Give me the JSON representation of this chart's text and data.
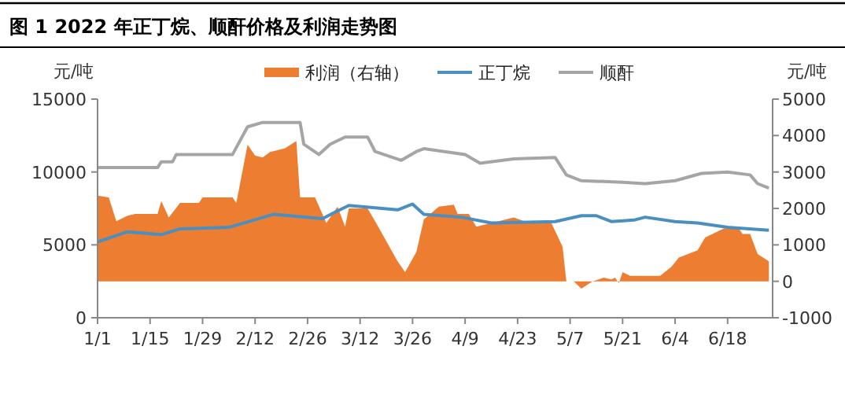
{
  "chart_data": {
    "type": "line",
    "title": "图 1 2022 年正丁烷、顺酐价格及利润走势图",
    "ylabel": "元/吨",
    "y2label": "元/吨",
    "xlim": [
      "2022-01-01",
      "2022-06-30"
    ],
    "xticks": [
      {
        "value": "2022-01-01",
        "label": "1/1"
      },
      {
        "value": "2022-01-15",
        "label": "1/15"
      },
      {
        "value": "2022-01-29",
        "label": "1/29"
      },
      {
        "value": "2022-02-12",
        "label": "2/12"
      },
      {
        "value": "2022-02-26",
        "label": "2/26"
      },
      {
        "value": "2022-03-12",
        "label": "3/12"
      },
      {
        "value": "2022-03-26",
        "label": "3/26"
      },
      {
        "value": "2022-04-09",
        "label": "4/9"
      },
      {
        "value": "2022-04-23",
        "label": "4/23"
      },
      {
        "value": "2022-05-07",
        "label": "5/7"
      },
      {
        "value": "2022-05-21",
        "label": "5/21"
      },
      {
        "value": "2022-06-04",
        "label": "6/4"
      },
      {
        "value": "2022-06-18",
        "label": "6/18"
      }
    ],
    "ylim": [
      0,
      15000
    ],
    "yticks": [
      0,
      5000,
      10000,
      15000
    ],
    "y2lim": [
      -1000,
      5000
    ],
    "y2ticks": [
      -1000,
      0,
      1000,
      2000,
      3000,
      4000,
      5000
    ],
    "legend": "top",
    "grid": false,
    "marker": "none",
    "series": [
      {
        "name": "利润（右轴）",
        "type": "area",
        "axis": "y2",
        "color": "#ed7d31",
        "x": [
          "2022-01-01",
          "2022-01-04",
          "2022-01-06",
          "2022-01-09",
          "2022-01-11",
          "2022-01-17",
          "2022-01-18",
          "2022-01-20",
          "2022-01-23",
          "2022-01-28",
          "2022-01-29",
          "2022-02-06",
          "2022-02-07",
          "2022-02-10",
          "2022-02-12",
          "2022-02-14",
          "2022-02-16",
          "2022-02-20",
          "2022-02-23",
          "2022-02-24",
          "2022-02-28",
          "2022-03-03",
          "2022-03-06",
          "2022-03-08",
          "2022-03-09",
          "2022-03-14",
          "2022-03-16",
          "2022-03-19",
          "2022-03-22",
          "2022-03-24",
          "2022-03-27",
          "2022-03-29",
          "2022-04-02",
          "2022-04-06",
          "2022-04-07",
          "2022-04-10",
          "2022-04-12",
          "2022-04-16",
          "2022-04-22",
          "2022-04-26",
          "2022-05-02",
          "2022-05-05",
          "2022-05-06",
          "2022-05-08",
          "2022-05-10",
          "2022-05-13",
          "2022-05-16",
          "2022-05-18",
          "2022-05-19",
          "2022-05-20",
          "2022-05-21",
          "2022-05-23",
          "2022-05-25",
          "2022-05-31",
          "2022-06-03",
          "2022-06-05",
          "2022-06-10",
          "2022-06-12",
          "2022-06-17",
          "2022-06-21",
          "2022-06-22",
          "2022-06-24",
          "2022-06-26",
          "2022-06-29"
        ],
        "values": [
          2350,
          2300,
          1650,
          1800,
          1850,
          1850,
          2200,
          1750,
          2150,
          2150,
          2300,
          2300,
          2150,
          3750,
          3450,
          3400,
          3550,
          3650,
          3850,
          2300,
          2300,
          1600,
          2050,
          1500,
          2000,
          2000,
          1650,
          1100,
          550,
          250,
          800,
          1700,
          2050,
          2100,
          1850,
          1850,
          1500,
          1600,
          1750,
          1600,
          1600,
          950,
          0,
          0,
          -200,
          0,
          100,
          50,
          100,
          -50,
          250,
          150,
          150,
          150,
          400,
          650,
          850,
          1200,
          1450,
          1450,
          1300,
          1300,
          750,
          550
        ]
      },
      {
        "name": "正丁烷",
        "color": "#4a8fc0",
        "x": [
          "2022-01-01",
          "2022-01-09",
          "2022-01-18",
          "2022-01-23",
          "2022-02-05",
          "2022-02-17",
          "2022-03-02",
          "2022-03-05",
          "2022-03-09",
          "2022-03-22",
          "2022-03-26",
          "2022-03-29",
          "2022-04-08",
          "2022-04-16",
          "2022-05-03",
          "2022-05-10",
          "2022-05-14",
          "2022-05-18",
          "2022-05-24",
          "2022-05-27",
          "2022-06-04",
          "2022-06-10",
          "2022-06-18",
          "2022-06-29"
        ],
        "values": [
          5200,
          5900,
          5700,
          6100,
          6200,
          7100,
          6800,
          7200,
          7700,
          7400,
          7800,
          7100,
          6900,
          6500,
          6600,
          7000,
          7000,
          6600,
          6700,
          6900,
          6600,
          6500,
          6200,
          6000
        ]
      },
      {
        "name": "顺酐",
        "color": "#a5a5a5",
        "x": [
          "2022-01-01",
          "2022-01-17",
          "2022-01-18",
          "2022-01-21",
          "2022-01-22",
          "2022-02-06",
          "2022-02-10",
          "2022-02-14",
          "2022-02-24",
          "2022-02-25",
          "2022-03-01",
          "2022-03-04",
          "2022-03-08",
          "2022-03-14",
          "2022-03-16",
          "2022-03-23",
          "2022-03-27",
          "2022-03-29",
          "2022-04-09",
          "2022-04-13",
          "2022-04-22",
          "2022-05-03",
          "2022-05-06",
          "2022-05-10",
          "2022-05-21",
          "2022-05-27",
          "2022-06-04",
          "2022-06-11",
          "2022-06-18",
          "2022-06-24",
          "2022-06-26",
          "2022-06-29"
        ],
        "values": [
          10300,
          10300,
          10700,
          10700,
          11200,
          11200,
          13100,
          13400,
          13400,
          11900,
          11200,
          11900,
          12400,
          12400,
          11400,
          10800,
          11400,
          11600,
          11200,
          10600,
          10900,
          11000,
          9800,
          9400,
          9300,
          9200,
          9400,
          9900,
          10000,
          9800,
          9200,
          8900
        ]
      }
    ]
  }
}
